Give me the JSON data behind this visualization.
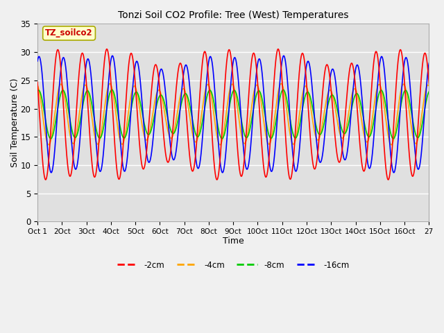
{
  "title": "Tonzi Soil CO2 Profile: Tree (West) Temperatures",
  "xlabel": "Time",
  "ylabel": "Soil Temperature (C)",
  "ylim": [
    0,
    35
  ],
  "yticks": [
    0,
    5,
    10,
    15,
    20,
    25,
    30,
    35
  ],
  "xlim_hours": 384,
  "xtick_positions": [
    0,
    24,
    48,
    72,
    96,
    120,
    144,
    168,
    192,
    216,
    240,
    264,
    288,
    312,
    336,
    360,
    384
  ],
  "xtick_labels": [
    "Oct 1",
    "2Oct",
    "3Oct",
    "4Oct",
    "5Oct",
    "6Oct",
    "7Oct",
    "8Oct",
    "9Oct",
    "10Oct",
    "11Oct",
    "12Oct",
    "13Oct",
    "14Oct",
    "15Oct",
    "16Oct",
    "27"
  ],
  "series_labels": [
    "-2cm",
    "-4cm",
    "-8cm",
    "-16cm"
  ],
  "series_colors": [
    "#ff0000",
    "#ffa500",
    "#00cc00",
    "#0000ff"
  ],
  "annotation_text": "TZ_soilco2",
  "annotation_color": "#cc0000",
  "annotation_bg": "#ffffcc",
  "annotation_edge": "#aaaa00",
  "fig_bg": "#f0f0f0",
  "axes_bg": "#e0e0e0",
  "grid_color": "#ffffff",
  "figsize": [
    6.4,
    4.8
  ],
  "dpi": 100
}
